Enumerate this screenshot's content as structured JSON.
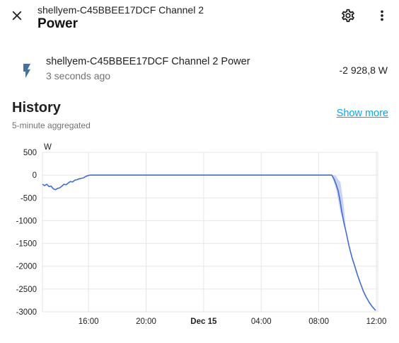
{
  "header": {
    "subtitle": "shellyem-C45BBEE17DCF Channel 2",
    "title": "Power"
  },
  "entity": {
    "name": "shellyem-C45BBEE17DCF Channel 2 Power",
    "last_changed": "3 seconds ago",
    "state": "-2 928,8 W",
    "icon": "flash-icon"
  },
  "history": {
    "title": "History",
    "subtitle": "5-minute aggregated",
    "show_more": "Show more"
  },
  "colors": {
    "accent": "#03a9f4",
    "line": "#3f6bd8",
    "band": "#b7c6f2",
    "icon": "#44739e"
  },
  "chart_data": {
    "type": "line",
    "ylabel": "W",
    "ylim": [
      -3000,
      500
    ],
    "yticks": [
      500,
      0,
      -500,
      -1000,
      -1500,
      -2000,
      -2500,
      -3000
    ],
    "ytick_labels": [
      "500",
      "0",
      "-500",
      "-1000",
      "-1500",
      "-2000",
      "-2500",
      "-3000"
    ],
    "xticks": [
      {
        "label": "16:00",
        "h": 16,
        "bold": false
      },
      {
        "label": "20:00",
        "h": 20,
        "bold": false
      },
      {
        "label": "Dec 15",
        "h": 24,
        "bold": true
      },
      {
        "label": "04:00",
        "h": 28,
        "bold": false
      },
      {
        "label": "08:00",
        "h": 32,
        "bold": false
      },
      {
        "label": "12:00",
        "h": 36,
        "bold": false
      }
    ],
    "xlim_hours": [
      12.8,
      36.1
    ],
    "grid": true,
    "series": [
      {
        "points": [
          [
            12.8,
            -200
          ],
          [
            12.95,
            -230
          ],
          [
            13.1,
            -200
          ],
          [
            13.25,
            -250
          ],
          [
            13.4,
            -240
          ],
          [
            13.55,
            -300
          ],
          [
            13.7,
            -320
          ],
          [
            13.85,
            -290
          ],
          [
            14.0,
            -280
          ],
          [
            14.15,
            -240
          ],
          [
            14.3,
            -200
          ],
          [
            14.45,
            -210
          ],
          [
            14.6,
            -170
          ],
          [
            14.75,
            -140
          ],
          [
            14.9,
            -150
          ],
          [
            15.05,
            -110
          ],
          [
            15.2,
            -100
          ],
          [
            15.35,
            -80
          ],
          [
            15.5,
            -70
          ],
          [
            15.65,
            -60
          ],
          [
            15.8,
            -30
          ],
          [
            15.95,
            -10
          ],
          [
            16.1,
            0
          ],
          [
            20,
            0
          ],
          [
            24,
            0
          ],
          [
            28,
            0
          ],
          [
            32,
            0
          ],
          [
            32.9,
            0
          ],
          [
            33.05,
            -80
          ],
          [
            33.2,
            -200
          ],
          [
            33.35,
            -350
          ],
          [
            33.5,
            -600
          ],
          [
            33.6,
            -800
          ],
          [
            33.75,
            -1050
          ],
          [
            33.9,
            -1250
          ],
          [
            34.1,
            -1550
          ],
          [
            34.3,
            -1800
          ],
          [
            34.5,
            -2000
          ],
          [
            34.7,
            -2200
          ],
          [
            34.9,
            -2380
          ],
          [
            35.1,
            -2550
          ],
          [
            35.3,
            -2680
          ],
          [
            35.5,
            -2790
          ],
          [
            35.7,
            -2880
          ],
          [
            35.95,
            -2970
          ]
        ],
        "band_upper": [
          [
            32.9,
            0
          ],
          [
            33.05,
            0
          ],
          [
            33.2,
            -20
          ],
          [
            33.35,
            -100
          ],
          [
            33.5,
            -150
          ],
          [
            33.6,
            -350
          ],
          [
            33.75,
            -700
          ],
          [
            33.9,
            -1250
          ]
        ],
        "band_lower": [
          [
            32.9,
            0
          ],
          [
            33.05,
            -150
          ],
          [
            33.2,
            -300
          ],
          [
            33.35,
            -550
          ],
          [
            33.5,
            -800
          ],
          [
            33.6,
            -900
          ],
          [
            33.75,
            -1100
          ],
          [
            33.9,
            -1250
          ]
        ]
      }
    ]
  }
}
